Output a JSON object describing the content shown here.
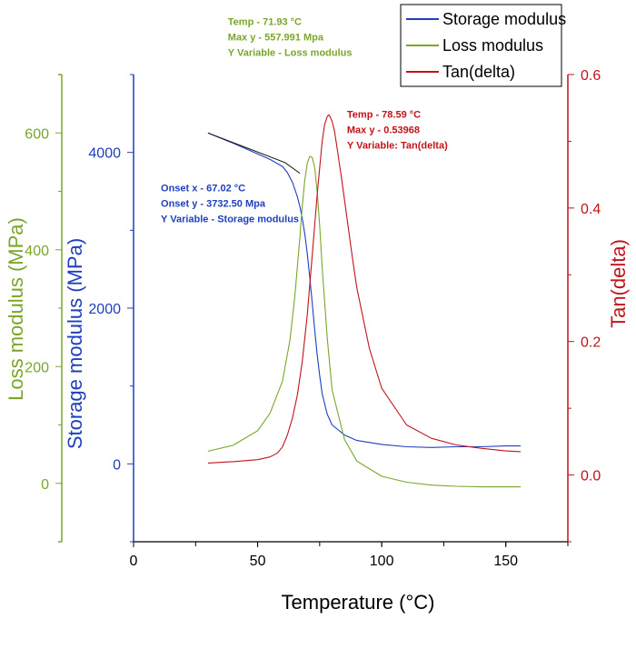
{
  "chart_data": {
    "type": "line",
    "xlabel": "Temperature (°C)",
    "xlim": [
      0,
      175
    ],
    "xticks": [
      0,
      50,
      100,
      150
    ],
    "axes": {
      "storage": {
        "label": "Storage modulus (MPa)",
        "color": "#1f3fbf",
        "ylim": [
          -1000,
          5000
        ],
        "ticks": [
          0,
          2000,
          4000
        ]
      },
      "loss": {
        "label": "Loss modulus (MPa)",
        "color": "#7aa62a",
        "ylim": [
          -100,
          700
        ],
        "ticks": [
          0,
          200,
          400,
          600
        ]
      },
      "tan": {
        "label": "Tan(delta)",
        "color": "#c0141a",
        "ylim": [
          -0.1,
          0.6
        ],
        "ticks": [
          0.0,
          0.2,
          0.4,
          0.6
        ]
      }
    },
    "series": [
      {
        "name": "Storage modulus",
        "axis": "storage",
        "color": "#1f3fbf",
        "x": [
          30,
          40,
          50,
          55,
          60,
          62,
          64,
          66,
          67,
          68,
          69,
          70,
          71,
          72,
          73,
          74,
          75,
          76,
          78,
          80,
          85,
          90,
          100,
          110,
          120,
          130,
          140,
          150,
          156
        ],
        "y": [
          4250,
          4120,
          3980,
          3910,
          3820,
          3740,
          3620,
          3430,
          3310,
          3150,
          2950,
          2700,
          2400,
          2060,
          1720,
          1400,
          1130,
          900,
          640,
          500,
          370,
          300,
          250,
          220,
          210,
          220,
          220,
          230,
          230
        ]
      },
      {
        "name": "Loss modulus",
        "axis": "loss",
        "color": "#7aa62a",
        "x": [
          30,
          40,
          50,
          55,
          60,
          63,
          65,
          67,
          68,
          69,
          70,
          71,
          72,
          73,
          74,
          75,
          76,
          78,
          80,
          85,
          90,
          100,
          110,
          120,
          130,
          140,
          150,
          156
        ],
        "y": [
          55,
          65,
          90,
          120,
          175,
          245,
          320,
          420,
          475,
          520,
          548,
          560,
          558,
          540,
          500,
          440,
          370,
          250,
          160,
          75,
          38,
          12,
          2,
          -3,
          -5,
          -6,
          -6,
          -6
        ]
      },
      {
        "name": "Tan(delta)",
        "axis": "tan",
        "color": "#c0141a",
        "x": [
          30,
          40,
          50,
          55,
          58,
          60,
          62,
          64,
          66,
          68,
          70,
          72,
          74,
          76,
          77,
          78,
          78.6,
          79,
          80,
          81,
          82,
          84,
          86,
          88,
          90,
          95,
          100,
          110,
          120,
          130,
          140,
          150,
          156
        ],
        "y": [
          0.018,
          0.02,
          0.023,
          0.027,
          0.033,
          0.042,
          0.06,
          0.085,
          0.12,
          0.17,
          0.24,
          0.33,
          0.42,
          0.5,
          0.525,
          0.537,
          0.5397,
          0.538,
          0.53,
          0.515,
          0.49,
          0.44,
          0.385,
          0.33,
          0.28,
          0.19,
          0.13,
          0.075,
          0.055,
          0.045,
          0.04,
          0.036,
          0.035
        ]
      }
    ],
    "onset_tangent": {
      "axis": "storage",
      "x": [
        30,
        61,
        67.02
      ],
      "y": [
        4250,
        3870,
        3732.5
      ]
    },
    "legend": {
      "position": "top-right",
      "entries": [
        {
          "name": "Storage modulus",
          "color": "#1f3fbf"
        },
        {
          "name": "Loss modulus",
          "color": "#7aa62a"
        },
        {
          "name": "Tan(delta)",
          "color": "#c0141a"
        }
      ]
    },
    "annotations": [
      {
        "axis": "loss",
        "color": "#7aa62a",
        "anchor_x": 38,
        "anchor_y": 785,
        "lines": [
          "Temp - 71.93 °C",
          "Max y - 557.991 Mpa",
          "Y Variable - Loss modulus"
        ]
      },
      {
        "axis": "tan",
        "color": "#c0141a",
        "anchor_x": 86,
        "anchor_y": 0.535,
        "lines": [
          "Temp - 78.59 °C",
          "Max y -  0.53968",
          "Y Variable: Tan(delta)"
        ]
      },
      {
        "axis": "storage",
        "color": "#1f3fbf",
        "anchor_x": 11,
        "anchor_y": 3500,
        "lines": [
          "Onset x - 67.02 °C",
          "Onset y - 3732.50 Mpa",
          "Y Variable - Storage modulus"
        ]
      }
    ]
  }
}
